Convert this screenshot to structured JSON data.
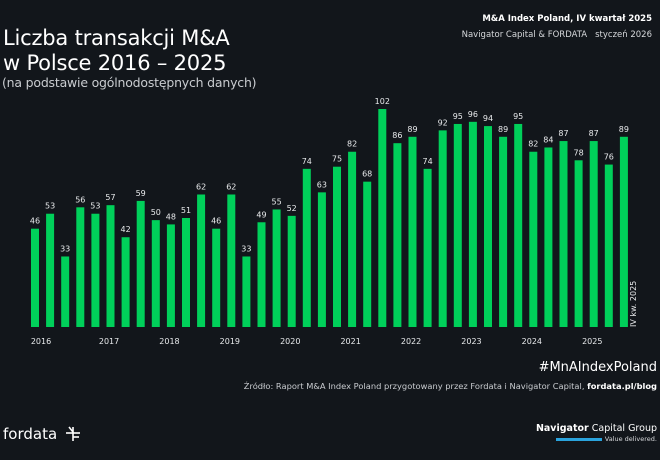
{
  "header": {
    "title_line1": "Liczba transakcji M&A",
    "title_line2": "w Polsce 2016 – 2025",
    "subtitle": "(na podstawie ogólnodostępnych danych)",
    "report_name": "M&A Index Poland, IV kwartał 2025",
    "authors": "Navigator Capital & FORDATA",
    "date": "styczeń 2026"
  },
  "chart_data": {
    "type": "bar",
    "title": "Liczba transakcji M&A w Polsce 2016 – 2025",
    "xlabel": "",
    "ylabel": "",
    "ylim": [
      0,
      110
    ],
    "grid": false,
    "bar_color": "#00d05a",
    "categories": [
      "2016 Q1",
      "2016 Q2",
      "2016 Q3",
      "2016 Q4",
      "2017 Q1",
      "2017 Q2",
      "2017 Q3",
      "2017 Q4",
      "2018 Q1",
      "2018 Q2",
      "2018 Q3",
      "2018 Q4",
      "2019 Q1",
      "2019 Q2",
      "2019 Q3",
      "2019 Q4",
      "2020 Q1",
      "2020 Q2",
      "2020 Q3",
      "2020 Q4",
      "2021 Q1",
      "2021 Q2",
      "2021 Q3",
      "2021 Q4",
      "2022 Q1",
      "2022 Q2",
      "2022 Q3",
      "2022 Q4",
      "2023 Q1",
      "2023 Q2",
      "2023 Q3",
      "2023 Q4",
      "2024 Q1",
      "2024 Q2",
      "2024 Q3",
      "2024 Q4",
      "2025 Q1",
      "2025 Q2",
      "2025 Q3",
      "2025 Q4"
    ],
    "values": [
      46,
      53,
      33,
      56,
      53,
      57,
      42,
      59,
      50,
      48,
      51,
      62,
      46,
      62,
      33,
      49,
      55,
      52,
      74,
      63,
      75,
      82,
      68,
      102,
      86,
      89,
      74,
      92,
      95,
      96,
      94,
      89,
      95,
      82,
      84,
      87,
      78,
      87,
      76,
      89
    ],
    "year_labels": [
      "2016",
      "2017",
      "2018",
      "2019",
      "2020",
      "2021",
      "2022",
      "2023",
      "2024",
      "2025"
    ],
    "last_bar_annotation": "IV kw. 2025"
  },
  "footer": {
    "hashtag": "#MnAIndexPoland",
    "source_text": "Źródło: Raport M&A Index Poland przygotowany przez Fordata i Navigator Capital, ",
    "source_link": "fordata.pl/blog",
    "fordata_logo": "fordata",
    "navigator_name_bold": "Navigator",
    "navigator_name_rest": " Capital Group",
    "navigator_tagline": "Value delivered."
  }
}
